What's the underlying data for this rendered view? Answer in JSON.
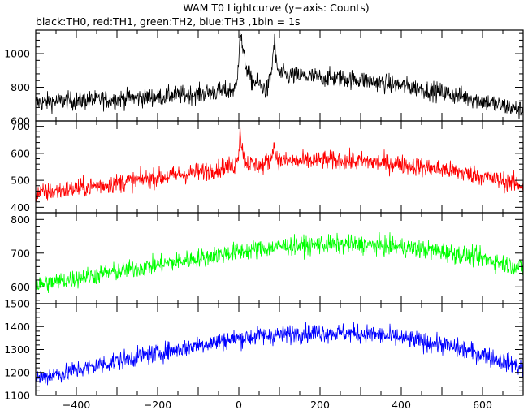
{
  "title": "WAM T0 Lightcurve (y−axis: Counts)",
  "subtitle": "black:TH0, red:TH1, green:TH2, blue:TH3 ,1bin = 1s",
  "chart_data": {
    "type": "line",
    "title": "WAM T0 Lightcurve (y−axis: Counts)",
    "subtitle": "black:TH0, red:TH1, green:TH2, blue:TH3 ,1bin = 1s",
    "xlim": [
      -500,
      700
    ],
    "xticks": [
      -400,
      -200,
      0,
      200,
      400,
      600
    ],
    "xtick_labels": [
      "−400",
      "−200",
      "0",
      "200",
      "400",
      "600"
    ],
    "grid": false,
    "series": [
      {
        "name": "TH0",
        "color": "#000000",
        "ylim": [
          600,
          1140
        ],
        "yticks": [
          600,
          800,
          1000
        ],
        "ytick_labels": [
          "600",
          "800",
          "1000"
        ],
        "x": [
          -500,
          -400,
          -300,
          -200,
          -100,
          -20,
          -5,
          0,
          3,
          8,
          15,
          30,
          50,
          70,
          80,
          85,
          88,
          92,
          100,
          120,
          200,
          300,
          400,
          500,
          600,
          700
        ],
        "y": [
          710,
          720,
          730,
          745,
          760,
          780,
          800,
          1000,
          1150,
          1050,
          950,
          840,
          820,
          780,
          880,
          1020,
          1080,
          940,
          880,
          870,
          860,
          845,
          810,
          770,
          720,
          660
        ]
      },
      {
        "name": "TH1",
        "color": "#ff0000",
        "ylim": [
          380,
          720
        ],
        "yticks": [
          400,
          500,
          600,
          700
        ],
        "ytick_labels": [
          "400",
          "500",
          "600",
          "700"
        ],
        "x": [
          -500,
          -400,
          -300,
          -200,
          -100,
          -10,
          0,
          3,
          8,
          15,
          30,
          60,
          80,
          85,
          90,
          100,
          150,
          200,
          300,
          400,
          500,
          600,
          700
        ],
        "y": [
          450,
          470,
          490,
          510,
          530,
          555,
          610,
          690,
          620,
          570,
          560,
          555,
          580,
          640,
          600,
          570,
          570,
          575,
          570,
          560,
          540,
          515,
          480
        ]
      },
      {
        "name": "TH2",
        "color": "#00ff00",
        "ylim": [
          550,
          820
        ],
        "yticks": [
          600,
          700,
          800
        ],
        "ytick_labels": [
          "600",
          "700",
          "800"
        ],
        "x": [
          -500,
          -400,
          -300,
          -200,
          -100,
          0,
          100,
          200,
          300,
          400,
          500,
          600,
          700
        ],
        "y": [
          605,
          625,
          645,
          665,
          685,
          705,
          720,
          725,
          725,
          718,
          705,
          685,
          655
        ]
      },
      {
        "name": "TH3",
        "color": "#0000ff",
        "ylim": [
          1100,
          1500
        ],
        "yticks": [
          1100,
          1200,
          1300,
          1400,
          1500
        ],
        "ytick_labels": [
          "1100",
          "1200",
          "1300",
          "1400",
          "1500"
        ],
        "x": [
          -500,
          -400,
          -300,
          -200,
          -100,
          0,
          100,
          200,
          300,
          400,
          500,
          600,
          700
        ],
        "y": [
          1175,
          1210,
          1250,
          1285,
          1320,
          1350,
          1365,
          1375,
          1370,
          1350,
          1320,
          1280,
          1220
        ]
      }
    ]
  }
}
